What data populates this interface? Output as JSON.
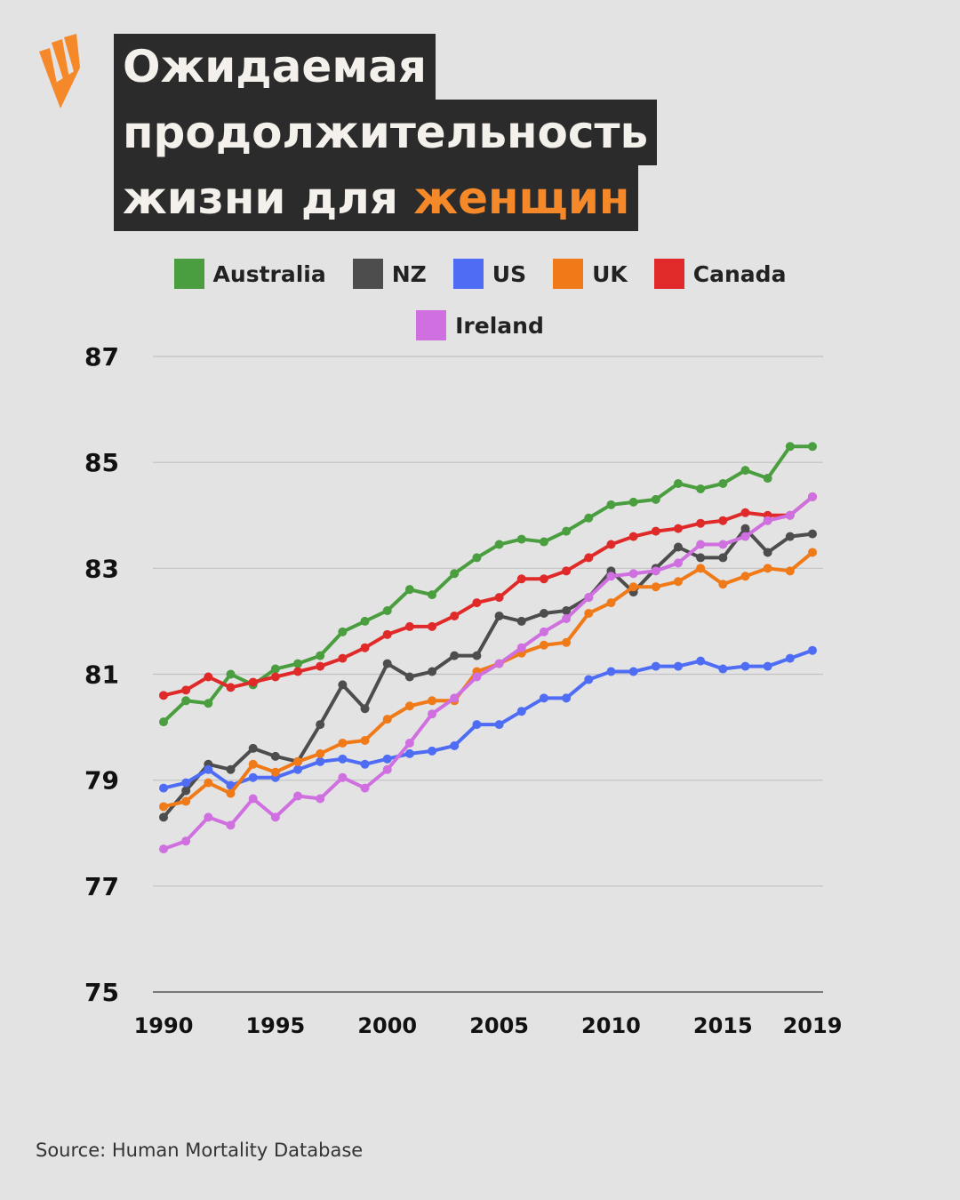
{
  "header": {
    "title_line1": "Ожидаемая",
    "title_line2": "продолжительность",
    "title_line3_prefix": "жизни для ",
    "title_line3_accent": "женщин"
  },
  "logo": {
    "icon": "sbs-logo-icon",
    "color": "#f5892a"
  },
  "source": "Source: Human Mortality Database",
  "colors": {
    "accent": "#f5892a",
    "background": "#e3e3e3",
    "title_bg": "#2b2b2b"
  },
  "chart_data": {
    "type": "line",
    "title": "Ожидаемая продолжительность жизни для женщин",
    "xlabel": "",
    "ylabel": "",
    "x": [
      1990,
      1991,
      1992,
      1993,
      1994,
      1995,
      1996,
      1997,
      1998,
      1999,
      2000,
      2001,
      2002,
      2003,
      2004,
      2005,
      2006,
      2007,
      2008,
      2009,
      2010,
      2011,
      2012,
      2013,
      2014,
      2015,
      2016,
      2017,
      2018,
      2019
    ],
    "xticks": [
      "1990",
      "1995",
      "2000",
      "2005",
      "2010",
      "2015",
      "2019"
    ],
    "yticks": [
      "75",
      "77",
      "79",
      "81",
      "83",
      "85",
      "87"
    ],
    "ylim": [
      75,
      87
    ],
    "xlim": [
      1990,
      2019
    ],
    "grid": true,
    "legend_position": "top",
    "series": [
      {
        "name": "Australia",
        "color": "#4a9e3f",
        "values": [
          80.1,
          80.5,
          80.45,
          81.0,
          80.8,
          81.1,
          81.2,
          81.35,
          81.8,
          82.0,
          82.2,
          82.6,
          82.5,
          82.9,
          83.2,
          83.45,
          83.55,
          83.5,
          83.7,
          83.95,
          84.2,
          84.25,
          84.3,
          84.6,
          84.5,
          84.6,
          84.85,
          84.7,
          85.3,
          85.3
        ]
      },
      {
        "name": "NZ",
        "color": "#4d4d4d",
        "values": [
          78.3,
          78.8,
          79.3,
          79.2,
          79.6,
          79.45,
          79.35,
          80.05,
          80.8,
          80.35,
          81.2,
          80.95,
          81.05,
          81.35,
          81.35,
          82.1,
          82.0,
          82.15,
          82.2,
          82.45,
          82.95,
          82.55,
          83.0,
          83.4,
          83.2,
          83.2,
          83.75,
          83.3,
          83.6,
          83.65
        ]
      },
      {
        "name": "US",
        "color": "#4f6cf5",
        "values": [
          78.85,
          78.95,
          79.2,
          78.9,
          79.05,
          79.05,
          79.2,
          79.35,
          79.4,
          79.3,
          79.4,
          79.5,
          79.55,
          79.65,
          80.05,
          80.05,
          80.3,
          80.55,
          80.55,
          80.9,
          81.05,
          81.05,
          81.15,
          81.15,
          81.25,
          81.1,
          81.15,
          81.15,
          81.3,
          81.45
        ]
      },
      {
        "name": "UK",
        "color": "#f07a18",
        "values": [
          78.5,
          78.6,
          78.95,
          78.75,
          79.3,
          79.15,
          79.35,
          79.5,
          79.7,
          79.75,
          80.15,
          80.4,
          80.5,
          80.5,
          81.05,
          81.2,
          81.4,
          81.55,
          81.6,
          82.15,
          82.35,
          82.65,
          82.65,
          82.75,
          83.0,
          82.7,
          82.85,
          83.0,
          82.95,
          83.3
        ]
      },
      {
        "name": "Canada",
        "color": "#e02a2a",
        "values": [
          80.6,
          80.7,
          80.95,
          80.75,
          80.85,
          80.95,
          81.05,
          81.15,
          81.3,
          81.5,
          81.75,
          81.9,
          81.9,
          82.1,
          82.35,
          82.45,
          82.8,
          82.8,
          82.95,
          83.2,
          83.45,
          83.6,
          83.7,
          83.75,
          83.85,
          83.9,
          84.05,
          84.0,
          84.0,
          84.35
        ]
      },
      {
        "name": "Ireland",
        "color": "#cf6fe0",
        "values": [
          77.7,
          77.85,
          78.3,
          78.15,
          78.65,
          78.3,
          78.7,
          78.65,
          79.05,
          78.85,
          79.2,
          79.7,
          80.25,
          80.55,
          80.95,
          81.2,
          81.5,
          81.8,
          82.05,
          82.45,
          82.85,
          82.9,
          82.95,
          83.1,
          83.45,
          83.45,
          83.6,
          83.9,
          84.0,
          84.35
        ]
      }
    ]
  }
}
